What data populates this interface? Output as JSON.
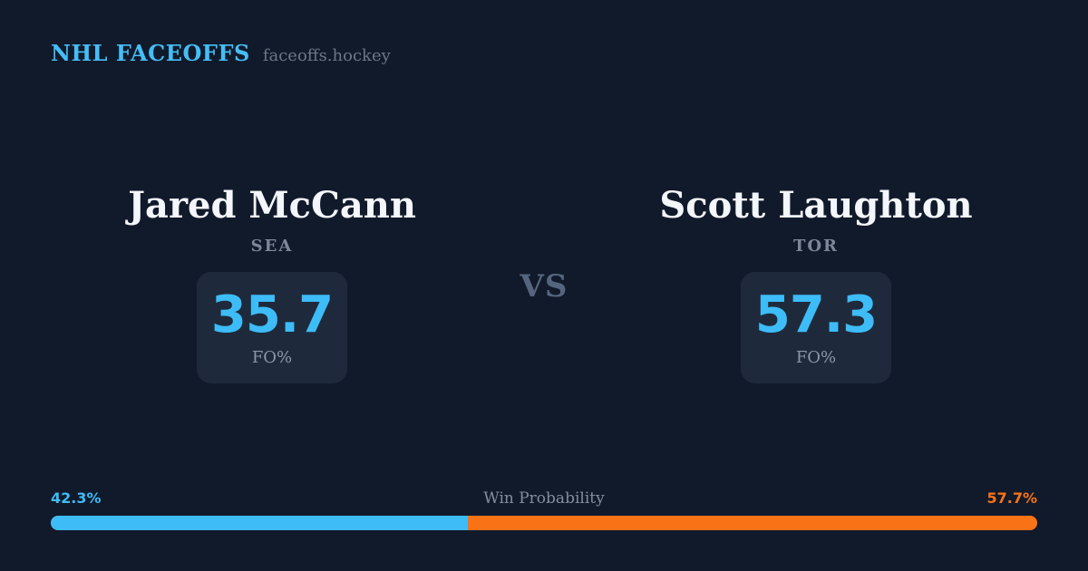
{
  "header": {
    "brand": "NHL FACEOFFS",
    "site": "faceoffs.hockey"
  },
  "vs_label": "VS",
  "players": {
    "left": {
      "name": "Jared McCann",
      "team": "SEA",
      "stat_value": "35.7",
      "stat_label": "FO%"
    },
    "right": {
      "name": "Scott Laughton",
      "team": "TOR",
      "stat_value": "57.3",
      "stat_label": "FO%"
    }
  },
  "win_probability": {
    "title": "Win Probability",
    "left_pct_label": "42.3%",
    "right_pct_label": "57.7%",
    "left_value": 42.3,
    "right_value": 57.7
  },
  "colors": {
    "background": "#111a2b",
    "card": "#1e2a3b",
    "accent_blue": "#3dbcf8",
    "accent_orange": "#f97316",
    "brand_blue": "#45bef5",
    "name_white": "#f3f6fa",
    "muted_gray": "#7c8799"
  },
  "chart_data": [
    {
      "type": "bar",
      "title": "Faceoff Percentage (FO%)",
      "categories": [
        "Jared McCann (SEA)",
        "Scott Laughton (TOR)"
      ],
      "values": [
        35.7,
        57.3
      ],
      "ylim": [
        0,
        100
      ],
      "legend": "none"
    },
    {
      "type": "bar",
      "title": "Win Probability",
      "categories": [
        "Jared McCann (SEA)",
        "Scott Laughton (TOR)"
      ],
      "values": [
        42.3,
        57.7
      ],
      "ylim": [
        0,
        100
      ],
      "legend": "none",
      "layout": "single horizontal stacked bar, blue left segment / orange right segment"
    }
  ]
}
